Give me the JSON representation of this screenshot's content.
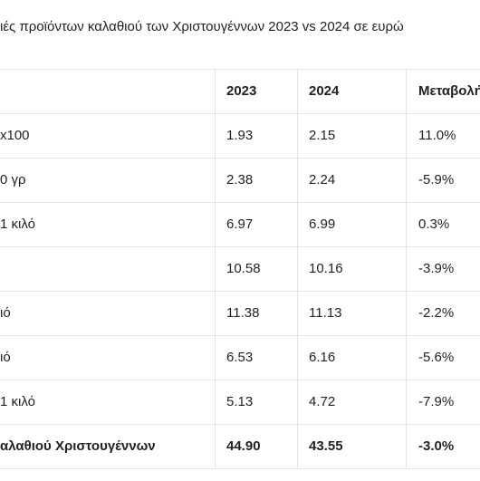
{
  "title": "ιές προϊόντων καλαθιού των Χριστουγέννων 2023 vs 2024 σε ευρώ",
  "table": {
    "header": [
      "2023",
      "2024",
      "Μεταβολή"
    ],
    "rows": [
      {
        "label": "x100",
        "cells": [
          "1.93",
          "2.15",
          "11.0%"
        ]
      },
      {
        "label": "0 γρ",
        "cells": [
          "2.38",
          "2.24",
          "-5.9%"
        ]
      },
      {
        "label": "1 κιλό",
        "cells": [
          "6.97",
          "6.99",
          "0.3%"
        ]
      },
      {
        "cells": [
          "10.58",
          "10.16",
          "-3.9%"
        ]
      },
      {
        "label": "ιό",
        "cells": [
          "11.38",
          "11.13",
          "-2.2%"
        ]
      },
      {
        "label": "ιό",
        "cells": [
          "6.53",
          "6.16",
          "-5.6%"
        ]
      },
      {
        "label": "1 κιλό",
        "cells": [
          "5.13",
          "4.72",
          "-7.9%"
        ]
      },
      {
        "label": "αλαθιού Χριστουγέννων",
        "cells": [
          "44.90",
          "43.55",
          "-3.0%"
        ],
        "bold": true
      }
    ]
  }
}
